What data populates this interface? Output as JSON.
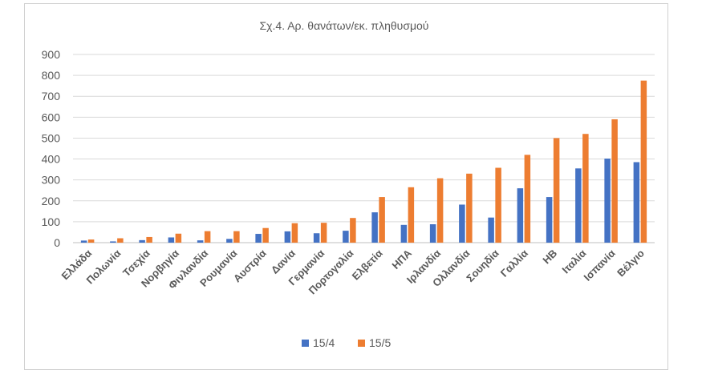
{
  "chart_data": {
    "type": "bar",
    "title": "Σχ.4. Αρ. θανάτων/εκ. πληθυσμού",
    "xlabel": "",
    "ylabel": "",
    "ylim": [
      0,
      900
    ],
    "yticks": [
      0,
      100,
      200,
      300,
      400,
      500,
      600,
      700,
      800,
      900
    ],
    "grid": true,
    "legend_position": "bottom",
    "categories": [
      "Ελλάδα",
      "Πολωνία",
      "Τσεχία",
      "Νορβηγία",
      "Φινλανδία",
      "Ρουμανία",
      "Αυστρία",
      "Δανία",
      "Γερμανία",
      "Πορτογαλία",
      "Ελβετία",
      "ΗΠΑ",
      "Ιρλανδία",
      "Ολλανδία",
      "Σουηδία",
      "Γαλλία",
      "ΗΒ",
      "Ιταλία",
      "Ισπανία",
      "Βέλγιο"
    ],
    "series": [
      {
        "name": "15/4",
        "color": "#4472c4",
        "values": [
          10,
          6,
          12,
          25,
          11,
          18,
          42,
          54,
          45,
          57,
          145,
          85,
          88,
          182,
          120,
          260,
          218,
          355,
          402,
          385
        ]
      },
      {
        "name": "15/5",
        "color": "#ed7d31",
        "values": [
          15,
          21,
          27,
          43,
          55,
          55,
          70,
          93,
          95,
          118,
          218,
          265,
          308,
          330,
          358,
          420,
          500,
          520,
          590,
          775
        ]
      }
    ]
  },
  "colors": {
    "grid": "#d9d9d9",
    "text": "#595959",
    "axis": "#bfbfbf"
  }
}
